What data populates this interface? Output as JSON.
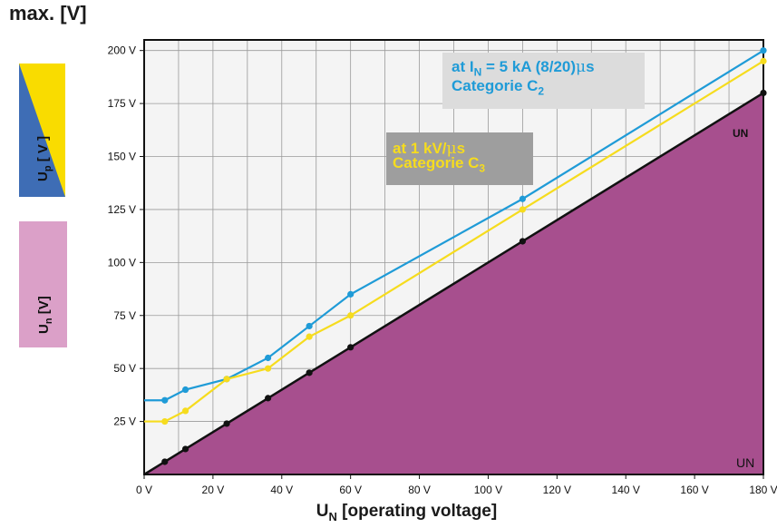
{
  "page_title": "max. [V]",
  "side_labels": {
    "up_main": "U",
    "up_sub": "p",
    "up_unit": " [ V ]",
    "un_main": "U",
    "un_sub": "n",
    "un_unit": " [V]"
  },
  "colors": {
    "c2_line": "#1f9bd7",
    "c3_line": "#f6dc1e",
    "un_fill": "#a74f8e",
    "un_line": "#111111",
    "plot_bg": "#f4f4f4",
    "up_box_blue": "#3e6db5",
    "up_box_yellow": "#f9dc00",
    "un_box": "#dba0c8",
    "c2_box": "#dcdcdc",
    "c3_box": "#9e9e9e"
  },
  "annotations": {
    "c2_line1_pre": "at I",
    "c2_line1_sub": "N",
    "c2_line1_post": " = 5 kA (8/20)",
    "c2_mu": "μ",
    "c2_s": "s",
    "c2_line2": "Categorie C",
    "c2_line2_sub": "2",
    "c3_line1": "at 1 kV/",
    "c3_mu": "μ",
    "c3_s": "s",
    "c3_line2": "Categorie C",
    "c3_line2_sub": "3",
    "un_top_label": "UN",
    "un_bottom_label": "UN"
  },
  "chart_data": {
    "type": "line",
    "title": "max. [V]",
    "xlabel": "UN [operating voltage]",
    "xlabel_main": "U",
    "xlabel_sub": "N",
    "xlabel_rest": " [operating voltage]",
    "ylabel": "Up [ V ] / Un [V]",
    "xlim": [
      0,
      180
    ],
    "ylim": [
      0,
      205
    ],
    "x_ticks": [
      0,
      20,
      40,
      60,
      80,
      100,
      120,
      140,
      160,
      180
    ],
    "x_tick_labels": [
      "0 V",
      "20 V",
      "40 V",
      "60 V",
      "80 V",
      "100 V",
      "120 V",
      "140 V",
      "160 V",
      "180 V"
    ],
    "y_ticks": [
      25,
      50,
      75,
      100,
      125,
      150,
      175,
      200
    ],
    "y_tick_labels": [
      "25 V",
      "50 V",
      "75 V",
      "100 V",
      "125 V",
      "150 V",
      "175 V",
      "200 V"
    ],
    "grid": true,
    "series": [
      {
        "name": "at IN = 5 kA (8/20)μs Categorie C2",
        "color": "#1f9bd7",
        "x": [
          0,
          6,
          12,
          24,
          36,
          48,
          60,
          110,
          180
        ],
        "y": [
          35,
          35,
          40,
          45,
          55,
          70,
          85,
          130,
          200
        ]
      },
      {
        "name": "at 1 kV/μs Categorie C3",
        "color": "#f6dc1e",
        "x": [
          0,
          6,
          12,
          24,
          36,
          48,
          60,
          110,
          180
        ],
        "y": [
          25,
          25,
          30,
          45,
          50,
          65,
          75,
          125,
          195
        ]
      },
      {
        "name": "UN",
        "color": "#111111",
        "fill": "#a74f8e",
        "x": [
          0,
          6,
          12,
          24,
          36,
          48,
          60,
          110,
          180
        ],
        "y": [
          0,
          6,
          12,
          24,
          36,
          48,
          60,
          110,
          180
        ]
      }
    ]
  }
}
